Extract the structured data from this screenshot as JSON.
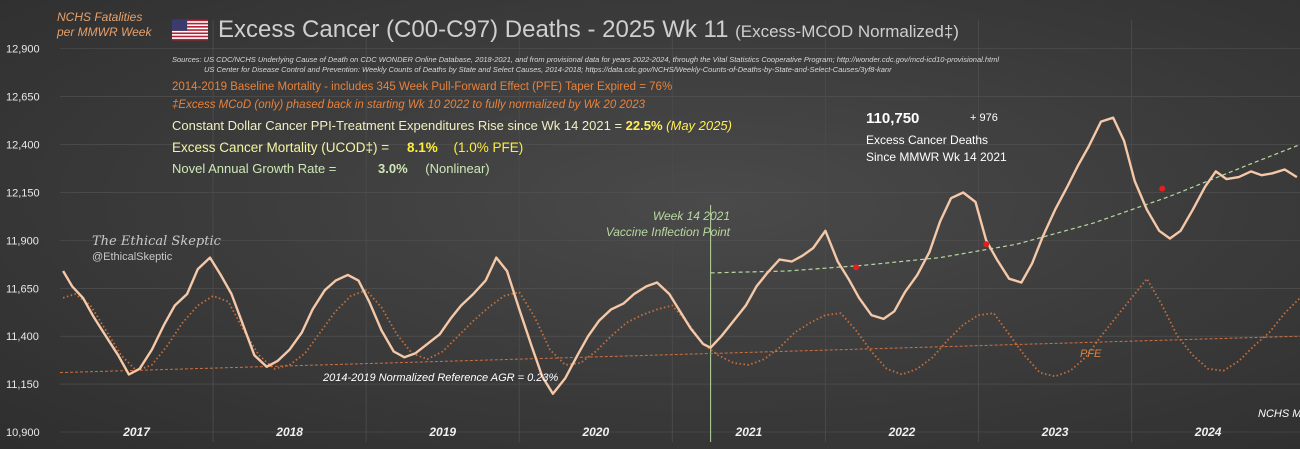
{
  "header": {
    "y_label_line1": "NCHS Fatalities",
    "y_label_line2": "per MMWR Week",
    "title_main": "Excess Cancer (C00-C97) Deaths - 2025 Wk 11",
    "title_sub": "(Excess-MCOD  Normalized‡)",
    "flag_icon": "us-flag-icon"
  },
  "sources": {
    "line1": "Sources:  US CDC/NCHS Underlying Cause of Death on CDC WONDER Online Database, 2018-2021, and from provisional data for years 2022-2024, through the Vital Statistics Cooperative Program; http://wonder.cdc.gov/mcd-icd10-provisional.html",
    "line2": "US Center for Disease Control and Prevention: Weekly  Counts of Deaths by State and Select Causes, 2014-2018; https://data.cdc.gov/NCHS/Weekly-Counts-of-Deaths-by-State-and-Select-Causes/3yf8-kanr"
  },
  "notes": {
    "baseline": "2014-2019 Baseline Mortality - includes 345 Week Pull-Forward Effect (PFE) Taper Expired =   76%",
    "mcod": "‡Excess  MCoD (only) phased back in starting  Wk 10 2022 to fully normalized  by Wk 20 2023",
    "ppi_label": "Constant Dollar Cancer PPI-Treatment Expenditures Rise since Wk 14 2021  =",
    "ppi_value": "22.5%",
    "ppi_date": "(May 2025)",
    "ucod_label": "Excess Cancer Mortality (UCOD‡) =",
    "ucod_value": "8.1%",
    "ucod_pfe": "(1.0% PFE)",
    "growth_label": "Novel Annual  Growth Rate  =",
    "growth_value": "3.0%",
    "growth_note": "(Nonlinear)"
  },
  "callout": {
    "total": "110,750",
    "delta": "+ 976",
    "line1": "Excess Cancer Deaths",
    "line2": "Since MMWR Wk 14 2021"
  },
  "annotations": {
    "week_line1": "Week 14 2021",
    "week_line2": "Vaccine Inflection Point",
    "brand": "The Ethical Skeptic",
    "handle": "@EthicalSkeptic",
    "reference": "2014-2019 Normalized Reference  AGR = 0.23%",
    "pfe": "PFE",
    "footer": "NCHS M"
  },
  "colors": {
    "observed": "#f5c8a8",
    "baseline_dotted": "#c8703a",
    "reference": "#d07040",
    "trend": "#b8d8a0",
    "marker": "#e02020",
    "gridline": "#555555"
  },
  "chart_data": {
    "type": "line",
    "x_unit": "year (decimal)",
    "xlim": [
      2016.5,
      2024.6
    ],
    "ylim": [
      10900,
      13050
    ],
    "yticks": [
      10900,
      11150,
      11400,
      11650,
      11900,
      12150,
      12400,
      12650,
      12900
    ],
    "ytick_labels": [
      "10,900",
      "11,150",
      "11,400",
      "11,650",
      "11,900",
      "12,150",
      "12,400",
      "12,650",
      "12,900"
    ],
    "year_labels": [
      {
        "label": "2017",
        "x": 2017.0
      },
      {
        "label": "2018",
        "x": 2018.0
      },
      {
        "label": "2019",
        "x": 2019.0
      },
      {
        "label": "2020",
        "x": 2020.0
      },
      {
        "label": "2021",
        "x": 2021.0
      },
      {
        "label": "2022",
        "x": 2022.0
      },
      {
        "label": "2023",
        "x": 2023.0
      },
      {
        "label": "2024",
        "x": 2024.0
      }
    ],
    "year_dividers": [
      2017.5,
      2018.5,
      2019.5,
      2020.5,
      2021.5,
      2022.5,
      2023.5
    ],
    "inflection_x": 2020.75,
    "series": [
      {
        "key": "observed",
        "x": [
          2016.52,
          2016.58,
          2016.65,
          2016.72,
          2016.8,
          2016.88,
          2016.95,
          2017.02,
          2017.1,
          2017.18,
          2017.25,
          2017.33,
          2017.4,
          2017.48,
          2017.55,
          2017.62,
          2017.7,
          2017.77,
          2017.85,
          2017.92,
          2018.0,
          2018.08,
          2018.15,
          2018.23,
          2018.3,
          2018.38,
          2018.45,
          2018.52,
          2018.6,
          2018.68,
          2018.75,
          2018.82,
          2018.9,
          2018.98,
          2019.05,
          2019.12,
          2019.2,
          2019.28,
          2019.35,
          2019.42,
          2019.5,
          2019.58,
          2019.65,
          2019.72,
          2019.8,
          2019.88,
          2019.95,
          2020.02,
          2020.1,
          2020.18,
          2020.25,
          2020.33,
          2020.4,
          2020.48,
          2020.55,
          2020.62,
          2020.7,
          2020.75,
          2020.82,
          2020.9,
          2020.98,
          2021.05,
          2021.12,
          2021.2,
          2021.28,
          2021.35,
          2021.42,
          2021.5,
          2021.58,
          2021.65,
          2021.72,
          2021.8,
          2021.88,
          2021.95,
          2022.02,
          2022.1,
          2022.18,
          2022.25,
          2022.32,
          2022.4,
          2022.48,
          2022.55,
          2022.62,
          2022.7,
          2022.78,
          2022.85,
          2022.92,
          2023.0,
          2023.08,
          2023.15,
          2023.22,
          2023.3,
          2023.38,
          2023.45,
          2023.52,
          2023.6,
          2023.68,
          2023.75,
          2023.82,
          2023.9,
          2023.98,
          2024.05,
          2024.12,
          2024.2,
          2024.28,
          2024.35,
          2024.42,
          2024.5,
          2024.58
        ],
        "y": [
          11740,
          11660,
          11600,
          11500,
          11400,
          11300,
          11200,
          11230,
          11330,
          11460,
          11560,
          11620,
          11750,
          11810,
          11720,
          11620,
          11450,
          11300,
          11240,
          11270,
          11330,
          11420,
          11540,
          11640,
          11690,
          11720,
          11690,
          11580,
          11430,
          11320,
          11290,
          11310,
          11360,
          11410,
          11490,
          11560,
          11620,
          11690,
          11810,
          11740,
          11540,
          11350,
          11190,
          11100,
          11180,
          11300,
          11400,
          11480,
          11540,
          11570,
          11620,
          11660,
          11680,
          11620,
          11530,
          11440,
          11360,
          11340,
          11400,
          11480,
          11560,
          11660,
          11730,
          11800,
          11790,
          11820,
          11860,
          11950,
          11790,
          11700,
          11600,
          11510,
          11490,
          11530,
          11630,
          11720,
          11840,
          12000,
          12120,
          12150,
          12100,
          11900,
          11800,
          11700,
          11680,
          11780,
          11920,
          12060,
          12180,
          12290,
          12390,
          12520,
          12540,
          12420,
          12210,
          12060,
          11950,
          11910,
          11950,
          12060,
          12180,
          12260,
          12220,
          12230,
          12260,
          12240,
          12250,
          12270,
          12230
        ]
      },
      {
        "key": "baseline",
        "x": [
          2016.52,
          2016.6,
          2016.7,
          2016.8,
          2016.9,
          2017.0,
          2017.1,
          2017.2,
          2017.3,
          2017.4,
          2017.5,
          2017.6,
          2017.7,
          2017.8,
          2017.9,
          2018.0,
          2018.1,
          2018.2,
          2018.3,
          2018.4,
          2018.5,
          2018.6,
          2018.7,
          2018.8,
          2018.9,
          2019.0,
          2019.1,
          2019.2,
          2019.3,
          2019.4,
          2019.5,
          2019.6,
          2019.7,
          2019.8,
          2019.9,
          2020.0,
          2020.1,
          2020.2,
          2020.3,
          2020.4,
          2020.5,
          2020.6,
          2020.7,
          2020.8,
          2020.9,
          2021.0,
          2021.1,
          2021.2,
          2021.3,
          2021.4,
          2021.5,
          2021.6,
          2021.7,
          2021.8,
          2021.9,
          2022.0,
          2022.1,
          2022.2,
          2022.3,
          2022.4,
          2022.5,
          2022.6,
          2022.7,
          2022.8,
          2022.9,
          2023.0,
          2023.1,
          2023.2,
          2023.3,
          2023.4,
          2023.5,
          2023.6,
          2023.7,
          2023.8,
          2023.9,
          2024.0,
          2024.1,
          2024.2,
          2024.3,
          2024.4,
          2024.5,
          2024.6
        ],
        "y": [
          11600,
          11620,
          11560,
          11430,
          11300,
          11220,
          11250,
          11350,
          11470,
          11560,
          11610,
          11580,
          11430,
          11300,
          11230,
          11250,
          11310,
          11420,
          11530,
          11610,
          11640,
          11550,
          11410,
          11310,
          11280,
          11320,
          11400,
          11480,
          11550,
          11610,
          11630,
          11500,
          11330,
          11250,
          11260,
          11320,
          11400,
          11470,
          11510,
          11540,
          11560,
          11470,
          11360,
          11300,
          11260,
          11250,
          11280,
          11340,
          11420,
          11470,
          11510,
          11520,
          11430,
          11320,
          11230,
          11200,
          11230,
          11290,
          11380,
          11460,
          11510,
          11520,
          11410,
          11300,
          11210,
          11190,
          11220,
          11290,
          11400,
          11500,
          11600,
          11700,
          11560,
          11400,
          11300,
          11230,
          11220,
          11270,
          11350,
          11420,
          11520,
          11600
        ]
      },
      {
        "key": "reference",
        "x": [
          2016.5,
          2024.6
        ],
        "y": [
          11210,
          11400
        ]
      },
      {
        "key": "trend",
        "x": [
          2020.75,
          2021.25,
          2021.75,
          2022.25,
          2022.75,
          2023.25,
          2023.75,
          2024.25,
          2024.6
        ],
        "y": [
          11730,
          11740,
          11770,
          11810,
          11880,
          11990,
          12130,
          12290,
          12400
        ]
      }
    ],
    "markers": [
      {
        "x": 2021.7,
        "y": 11760
      },
      {
        "x": 2022.55,
        "y": 11880
      },
      {
        "x": 2023.7,
        "y": 12170
      }
    ]
  }
}
